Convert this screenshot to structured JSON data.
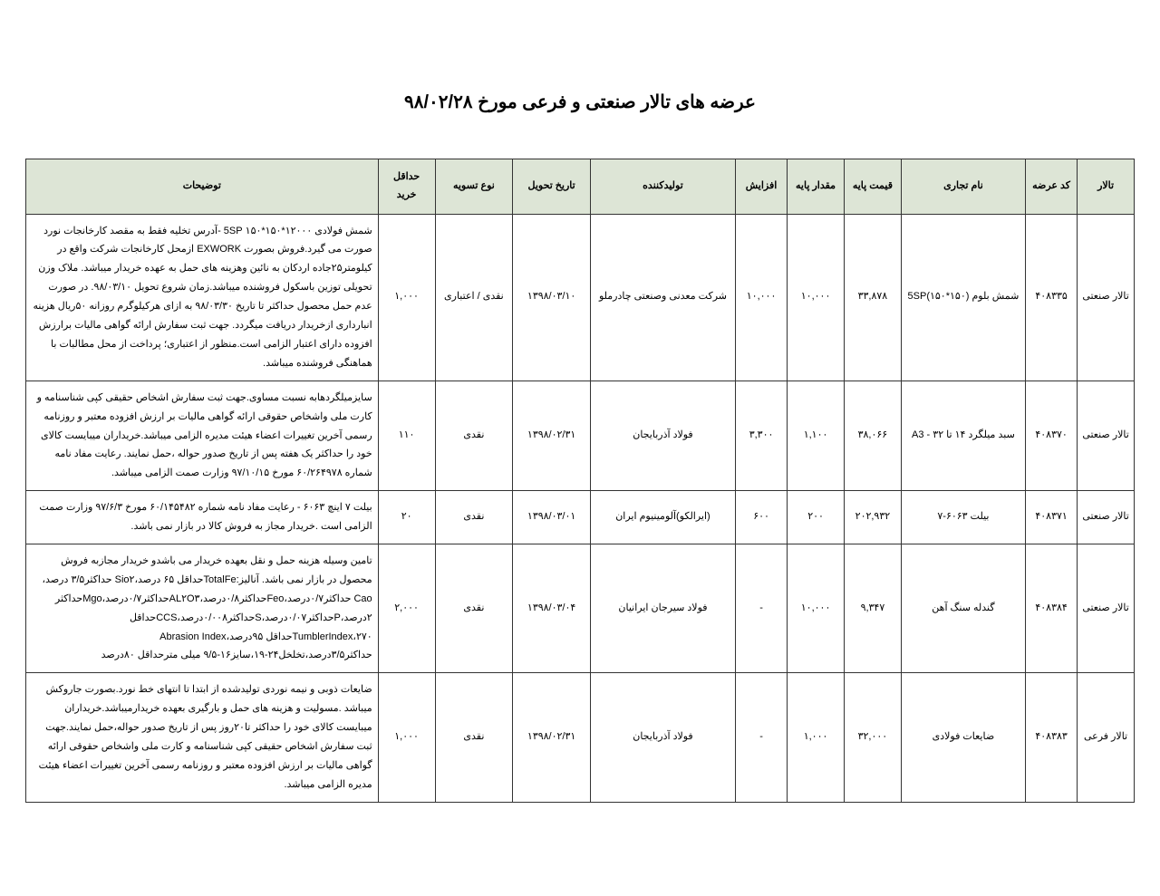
{
  "title": "عرضه های تالار صنعتی و فرعی مورخ ۹۸/۰۲/۲۸",
  "colors": {
    "background": "#ffffff",
    "text": "#000000",
    "border": "#333333",
    "header_bg": "#dde5d6"
  },
  "typography": {
    "title_fontsize_pt": 15,
    "cell_fontsize_pt": 8,
    "font_family": "Tahoma"
  },
  "columns": [
    {
      "key": "hall",
      "label": "تالار"
    },
    {
      "key": "code",
      "label": "کد عرضه"
    },
    {
      "key": "name",
      "label": "نام تجاری"
    },
    {
      "key": "price",
      "label": "قیمت پایه"
    },
    {
      "key": "qty",
      "label": "مقدار پایه"
    },
    {
      "key": "inc",
      "label": "افزایش"
    },
    {
      "key": "producer",
      "label": "تولیدکننده"
    },
    {
      "key": "date",
      "label": "تاریخ تحویل"
    },
    {
      "key": "settle",
      "label": "نوع تسویه"
    },
    {
      "key": "min",
      "label": "حداقل خرید"
    },
    {
      "key": "desc",
      "label": "توضیحات"
    }
  ],
  "rows": [
    {
      "hall": "تالار صنعتی",
      "code": "۴۰۸۳۳۵",
      "name": "شمش بلوم (۱۵۰*۱۵۰)5SP",
      "price": "۳۳,۸۷۸",
      "qty": "۱۰,۰۰۰",
      "inc": "۱۰,۰۰۰",
      "producer": "شرکت معدنی وصنعتی چادرملو",
      "date": "۱۳۹۸/۰۳/۱۰",
      "settle": "نقدی / اعتباری",
      "min": "۱,۰۰۰",
      "desc": "شمش فولادی ۱۲۰۰۰*۱۵۰*۱۵۰ 5SP -آدرس تخلیه فقط به مقصد کارخانجات نورد صورت می گیرد.فروش بصورت EXWORK ازمحل کارخانجات شرکت واقع در کیلومتر۲۵جاده اردکان به نائین وهزینه های حمل به عهده خریدار میباشد. ملاک وزن تحویلی توزین باسکول فروشنده میباشد.زمان شروع تحویل ۹۸/۰۳/۱۰. در صورت عدم حمل محصول حداکثر تا تاریخ ۹۸/۰۳/۳۰ به ازای هرکیلوگرم روزانه ۵۰ریال هزینه انبارداری ازخریدار دریافت میگردد. جهت ثبت سفارش ارائه گواهی مالیات برارزش افزوده دارای اعتبار الزامی است.منظور از اعتباری؛ پرداخت از محل مطالبات  با هماهنگی فروشنده میباشد."
    },
    {
      "hall": "تالار صنعتی",
      "code": "۴۰۸۳۷۰",
      "name": "سبد میلگرد ۱۴ تا ۳۲ - A3",
      "price": "۳۸,۰۶۶",
      "qty": "۱,۱۰۰",
      "inc": "۳,۳۰۰",
      "producer": "فولاد آذربایجان",
      "date": "۱۳۹۸/۰۲/۳۱",
      "settle": "نقدی",
      "min": "۱۱۰",
      "desc": "سایزمیلگردهابه نسبت مساوی.جهت ثبت سفارش اشخاص حقیقی کپی شناسنامه و کارت ملی واشخاص حقوقی ارائه گواهی مالیات بر ارزش افزوده معتبر و روزنامه رسمی آخرین تغییرات اعضاء هیئت مدیره الزامی میباشد.خریداران میبایست کالای خود را حداکثر یک هفته پس از تاریخ صدور حواله ،حمل نمایند. رعایت مفاد نامه شماره ۶۰/۲۶۴۹۷۸ مورخ ۹۷/۱۰/۱۵ وزارت صمت الزامی میباشد."
    },
    {
      "hall": "تالار صنعتی",
      "code": "۴۰۸۳۷۱",
      "name": "بیلت ۶۰۶۳-۷",
      "price": "۲۰۲,۹۳۲",
      "qty": "۲۰۰",
      "inc": "۶۰۰",
      "producer": "(ایرالکو)آلومینیوم ایران",
      "date": "۱۳۹۸/۰۳/۰۱",
      "settle": "نقدی",
      "min": "۲۰",
      "desc": "بیلت ۷ اینچ ۶۰۶۳ - رعایت مفاد نامه شماره ۶۰/۱۴۵۴۸۲ مورخ ۹۷/۶/۳ وزارت صمت الزامی است .خریدار مجاز به فروش کالا در بازار نمی باشد."
    },
    {
      "hall": "تالار صنعتی",
      "code": "۴۰۸۳۸۴",
      "name": "گندله سنگ آهن",
      "price": "۹,۳۴۷",
      "qty": "۱۰,۰۰۰",
      "inc": "-",
      "producer": "فولاد سیرجان ایرانیان",
      "date": "۱۳۹۸/۰۳/۰۴",
      "settle": "نقدی",
      "min": "۲,۰۰۰",
      "desc": "تامین وسیله هزینه حمل و نقل بعهده  خریدار می باشدو خریدار مجازبه فروش محصول در بازار نمی باشد. آنالیز:TotalFeحداقل ۶۵ درصد،Sio۲ حداکثر۳/۵ درصد، Cao حداکثر۰/۷درصد،Feoحداکثر۰/۸درصد،AL۲O۳حداکثر۰/۷درصد،Mgoحداکثر ۲درصد،Pحداکثر۰/۰۷درصد،Sحداکثر۰/۰۰۸درصد،CCSحداقل TumblerIndex،۲۷۰حداقل ۹۵درصد،Abrasion Index حداکثر۳/۵درصد،تخلخل۲۴-۱۹،سایز۱۶-۹/۵ میلی مترحداقل ۸۰درصد"
    },
    {
      "hall": "تالار فرعی",
      "code": "۴۰۸۳۸۳",
      "name": "ضایعات فولادی",
      "price": "۳۲,۰۰۰",
      "qty": "۱,۰۰۰",
      "inc": "-",
      "producer": "فولاد آذربایجان",
      "date": "۱۳۹۸/۰۲/۳۱",
      "settle": "نقدی",
      "min": "۱,۰۰۰",
      "desc": "ضایعات ذوبی و نیمه نوردی تولیدشده از ابتدا تا انتهای خط نورد.بصورت جاروکش میباشد .مسولیت و هزینه های حمل و بارگیری بعهده خریدارمیباشد.خریداران میبایست کالای خود را حداکثر تا۲۰روز پس از تاریخ صدور حواله،حمل نمایند.جهت ثبت سفارش اشخاص حقیقی کپی شناسنامه و کارت ملی واشخاص حقوقی ارائه گواهی مالیات بر ارزش افزوده معتبر و روزنامه رسمی آخرین تغییرات اعضاء هیئت مدیره الزامی میباشد."
    }
  ]
}
